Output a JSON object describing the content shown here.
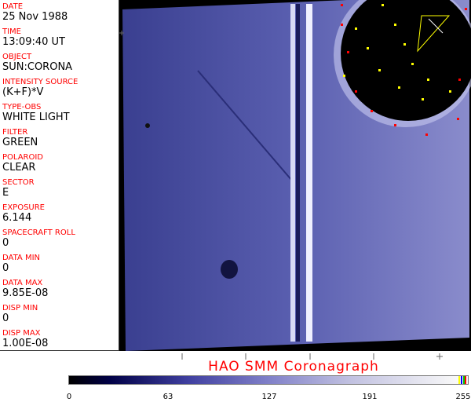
{
  "fields": [
    {
      "label": "DATE",
      "value": "25 Nov 1988"
    },
    {
      "label": "TIME",
      "value": "13:09:40 UT"
    },
    {
      "label": "OBJECT",
      "value": "SUN:CORONA"
    },
    {
      "label": "INTENSITY SOURCE",
      "value": "(K+F)*V"
    },
    {
      "label": "TYPE-OBS",
      "value": "WHITE LIGHT"
    },
    {
      "label": "FILTER",
      "value": "GREEN"
    },
    {
      "label": "POLAROID",
      "value": "CLEAR"
    },
    {
      "label": "SECTOR",
      "value": "E"
    },
    {
      "label": "EXPOSURE",
      "value": "6.144"
    },
    {
      "label": "SPACECRAFT ROLL",
      "value": "0"
    },
    {
      "label": "DATA MIN",
      "value": "0"
    },
    {
      "label": "DATA MAX",
      "value": "9.85E-08"
    },
    {
      "label": "DISP MIN",
      "value": "0"
    },
    {
      "label": "DISP MAX",
      "value": "1.00E-08"
    }
  ],
  "title": "HAO  SMM Coronagraph",
  "colorbar": {
    "ticks": [
      "0",
      "63",
      "127",
      "191",
      "255"
    ],
    "colors": [
      "#000000",
      "#000045",
      "#4040a0",
      "#8080c8",
      "#c0c0e0",
      "#f8f8f8"
    ]
  }
}
